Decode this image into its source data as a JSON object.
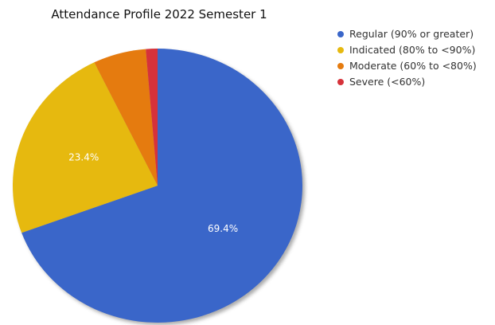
{
  "chart_data": {
    "type": "pie",
    "title": "Attendance Profile 2022 Semester 1",
    "slices": [
      {
        "label": "Regular (90% or greater)",
        "value": 69.4,
        "color": "#3a66c9",
        "data_label": "69.4%"
      },
      {
        "label": "Indicated (80% to <90%)",
        "value": 23.4,
        "color": "#e6b90f",
        "data_label": "23.4%"
      },
      {
        "label": "Moderate (60% to <80%)",
        "value": 5.9,
        "color": "#e57b0f",
        "data_label": ""
      },
      {
        "label": "Severe (<60%)",
        "value": 1.3,
        "color": "#d6323a",
        "data_label": ""
      }
    ],
    "start": "12 o'clock",
    "direction": "clockwise",
    "legend": "top-right"
  }
}
